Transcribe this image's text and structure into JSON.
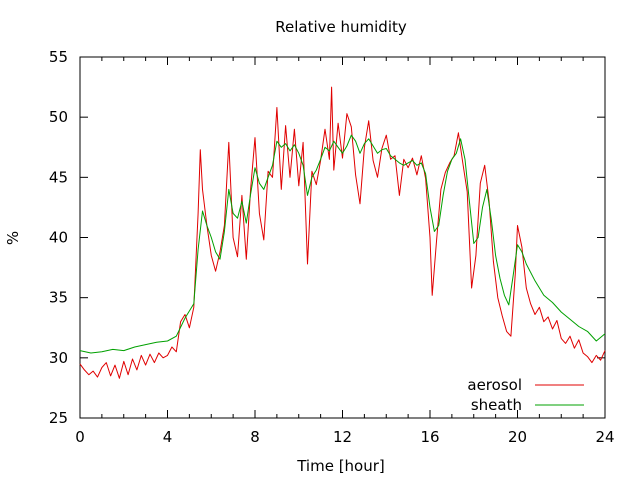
{
  "chart_data": {
    "type": "line",
    "title": "Relative humidity",
    "xlabel": "Time [hour]",
    "ylabel": "%",
    "xlim": [
      0,
      24
    ],
    "ylim": [
      25,
      55
    ],
    "x_ticks": [
      "0",
      "4",
      "8",
      "12",
      "16",
      "20",
      "24"
    ],
    "y_ticks": [
      "25",
      "30",
      "35",
      "40",
      "45",
      "50",
      "55"
    ],
    "grid": false,
    "legend_position": "bottom-right",
    "series": [
      {
        "name": "aerosol",
        "color": "#e00000",
        "points": [
          [
            0.0,
            29.5
          ],
          [
            0.2,
            29.0
          ],
          [
            0.4,
            28.6
          ],
          [
            0.6,
            28.9
          ],
          [
            0.8,
            28.4
          ],
          [
            1.0,
            29.2
          ],
          [
            1.2,
            29.6
          ],
          [
            1.4,
            28.5
          ],
          [
            1.6,
            29.4
          ],
          [
            1.8,
            28.3
          ],
          [
            2.0,
            29.7
          ],
          [
            2.2,
            28.6
          ],
          [
            2.4,
            29.9
          ],
          [
            2.6,
            29.0
          ],
          [
            2.8,
            30.2
          ],
          [
            3.0,
            29.4
          ],
          [
            3.2,
            30.3
          ],
          [
            3.4,
            29.6
          ],
          [
            3.6,
            30.4
          ],
          [
            3.8,
            30.0
          ],
          [
            4.0,
            30.2
          ],
          [
            4.2,
            30.9
          ],
          [
            4.4,
            30.5
          ],
          [
            4.6,
            33.0
          ],
          [
            4.8,
            33.6
          ],
          [
            5.0,
            32.5
          ],
          [
            5.2,
            34.2
          ],
          [
            5.4,
            42.0
          ],
          [
            5.5,
            47.3
          ],
          [
            5.6,
            44.0
          ],
          [
            5.8,
            41.0
          ],
          [
            6.0,
            38.5
          ],
          [
            6.2,
            37.2
          ],
          [
            6.4,
            38.8
          ],
          [
            6.6,
            41.0
          ],
          [
            6.8,
            47.9
          ],
          [
            7.0,
            40.0
          ],
          [
            7.2,
            38.4
          ],
          [
            7.4,
            43.5
          ],
          [
            7.6,
            38.2
          ],
          [
            7.8,
            44.0
          ],
          [
            8.0,
            48.3
          ],
          [
            8.2,
            42.0
          ],
          [
            8.4,
            39.8
          ],
          [
            8.6,
            45.5
          ],
          [
            8.8,
            45.0
          ],
          [
            9.0,
            50.8
          ],
          [
            9.2,
            44.0
          ],
          [
            9.4,
            49.3
          ],
          [
            9.6,
            45.0
          ],
          [
            9.8,
            49.0
          ],
          [
            10.0,
            44.3
          ],
          [
            10.2,
            47.9
          ],
          [
            10.4,
            37.8
          ],
          [
            10.6,
            45.5
          ],
          [
            10.8,
            44.4
          ],
          [
            11.0,
            46.4
          ],
          [
            11.2,
            49.0
          ],
          [
            11.4,
            46.5
          ],
          [
            11.5,
            52.5
          ],
          [
            11.6,
            45.6
          ],
          [
            11.8,
            49.5
          ],
          [
            12.0,
            46.6
          ],
          [
            12.2,
            50.3
          ],
          [
            12.4,
            49.2
          ],
          [
            12.6,
            45.2
          ],
          [
            12.8,
            42.8
          ],
          [
            13.0,
            47.5
          ],
          [
            13.2,
            49.7
          ],
          [
            13.4,
            46.4
          ],
          [
            13.6,
            45.0
          ],
          [
            13.8,
            47.4
          ],
          [
            14.0,
            48.5
          ],
          [
            14.2,
            46.5
          ],
          [
            14.4,
            46.8
          ],
          [
            14.6,
            43.5
          ],
          [
            14.8,
            46.5
          ],
          [
            15.0,
            45.8
          ],
          [
            15.2,
            46.6
          ],
          [
            15.4,
            45.2
          ],
          [
            15.6,
            46.8
          ],
          [
            15.8,
            44.9
          ],
          [
            16.0,
            40.0
          ],
          [
            16.1,
            35.2
          ],
          [
            16.3,
            39.8
          ],
          [
            16.5,
            44.0
          ],
          [
            16.7,
            45.4
          ],
          [
            16.9,
            46.2
          ],
          [
            17.1,
            46.8
          ],
          [
            17.3,
            48.7
          ],
          [
            17.5,
            46.2
          ],
          [
            17.7,
            43.8
          ],
          [
            17.9,
            35.8
          ],
          [
            18.1,
            38.5
          ],
          [
            18.3,
            44.5
          ],
          [
            18.5,
            46.0
          ],
          [
            18.7,
            43.0
          ],
          [
            18.9,
            38.0
          ],
          [
            19.1,
            35.0
          ],
          [
            19.3,
            33.5
          ],
          [
            19.5,
            32.2
          ],
          [
            19.7,
            31.8
          ],
          [
            19.9,
            37.0
          ],
          [
            20.0,
            41.0
          ],
          [
            20.2,
            39.2
          ],
          [
            20.4,
            35.8
          ],
          [
            20.6,
            34.5
          ],
          [
            20.8,
            33.6
          ],
          [
            21.0,
            34.2
          ],
          [
            21.2,
            33.0
          ],
          [
            21.4,
            33.4
          ],
          [
            21.6,
            32.4
          ],
          [
            21.8,
            33.1
          ],
          [
            22.0,
            31.6
          ],
          [
            22.2,
            31.2
          ],
          [
            22.4,
            31.8
          ],
          [
            22.6,
            30.8
          ],
          [
            22.8,
            31.5
          ],
          [
            23.0,
            30.4
          ],
          [
            23.2,
            30.1
          ],
          [
            23.4,
            29.6
          ],
          [
            23.6,
            30.2
          ],
          [
            23.8,
            29.8
          ],
          [
            24.0,
            30.6
          ]
        ]
      },
      {
        "name": "sheath",
        "color": "#00a000",
        "points": [
          [
            0.0,
            30.6
          ],
          [
            0.5,
            30.4
          ],
          [
            1.0,
            30.5
          ],
          [
            1.5,
            30.7
          ],
          [
            2.0,
            30.6
          ],
          [
            2.5,
            30.9
          ],
          [
            3.0,
            31.1
          ],
          [
            3.5,
            31.3
          ],
          [
            4.0,
            31.4
          ],
          [
            4.4,
            31.8
          ],
          [
            4.8,
            33.3
          ],
          [
            5.2,
            34.5
          ],
          [
            5.4,
            39.0
          ],
          [
            5.6,
            42.2
          ],
          [
            5.8,
            41.0
          ],
          [
            6.0,
            40.0
          ],
          [
            6.2,
            38.8
          ],
          [
            6.4,
            38.2
          ],
          [
            6.6,
            40.5
          ],
          [
            6.8,
            44.0
          ],
          [
            7.0,
            42.0
          ],
          [
            7.2,
            41.6
          ],
          [
            7.4,
            43.0
          ],
          [
            7.6,
            41.2
          ],
          [
            7.8,
            43.6
          ],
          [
            8.0,
            45.8
          ],
          [
            8.2,
            44.5
          ],
          [
            8.4,
            44.0
          ],
          [
            8.6,
            45.0
          ],
          [
            8.8,
            46.0
          ],
          [
            9.0,
            48.0
          ],
          [
            9.2,
            47.5
          ],
          [
            9.4,
            47.8
          ],
          [
            9.6,
            47.2
          ],
          [
            9.8,
            47.7
          ],
          [
            10.0,
            47.0
          ],
          [
            10.2,
            46.0
          ],
          [
            10.4,
            43.5
          ],
          [
            10.6,
            45.0
          ],
          [
            10.8,
            45.6
          ],
          [
            11.0,
            46.5
          ],
          [
            11.2,
            47.5
          ],
          [
            11.4,
            47.2
          ],
          [
            11.6,
            48.0
          ],
          [
            11.8,
            47.5
          ],
          [
            12.0,
            47.0
          ],
          [
            12.2,
            47.6
          ],
          [
            12.4,
            48.5
          ],
          [
            12.6,
            48.0
          ],
          [
            12.8,
            47.0
          ],
          [
            13.0,
            47.8
          ],
          [
            13.2,
            48.2
          ],
          [
            13.4,
            47.6
          ],
          [
            13.6,
            47.0
          ],
          [
            13.8,
            47.3
          ],
          [
            14.0,
            47.4
          ],
          [
            14.2,
            46.8
          ],
          [
            14.4,
            46.5
          ],
          [
            14.6,
            46.2
          ],
          [
            14.8,
            46.0
          ],
          [
            15.0,
            46.2
          ],
          [
            15.2,
            46.4
          ],
          [
            15.4,
            46.0
          ],
          [
            15.6,
            46.2
          ],
          [
            15.8,
            45.3
          ],
          [
            16.0,
            42.5
          ],
          [
            16.2,
            40.5
          ],
          [
            16.4,
            41.0
          ],
          [
            16.6,
            43.5
          ],
          [
            16.8,
            45.5
          ],
          [
            17.0,
            46.5
          ],
          [
            17.2,
            47.0
          ],
          [
            17.4,
            48.2
          ],
          [
            17.6,
            46.5
          ],
          [
            17.8,
            43.0
          ],
          [
            18.0,
            39.5
          ],
          [
            18.2,
            40.0
          ],
          [
            18.4,
            42.5
          ],
          [
            18.6,
            44.0
          ],
          [
            18.8,
            41.5
          ],
          [
            19.0,
            38.5
          ],
          [
            19.2,
            36.6
          ],
          [
            19.4,
            35.2
          ],
          [
            19.6,
            34.4
          ],
          [
            19.8,
            36.8
          ],
          [
            20.0,
            39.4
          ],
          [
            20.2,
            38.8
          ],
          [
            20.4,
            37.8
          ],
          [
            20.8,
            36.4
          ],
          [
            21.2,
            35.2
          ],
          [
            21.6,
            34.6
          ],
          [
            22.0,
            33.8
          ],
          [
            22.4,
            33.2
          ],
          [
            22.8,
            32.6
          ],
          [
            23.2,
            32.2
          ],
          [
            23.6,
            31.4
          ],
          [
            24.0,
            32.0
          ]
        ]
      }
    ]
  }
}
